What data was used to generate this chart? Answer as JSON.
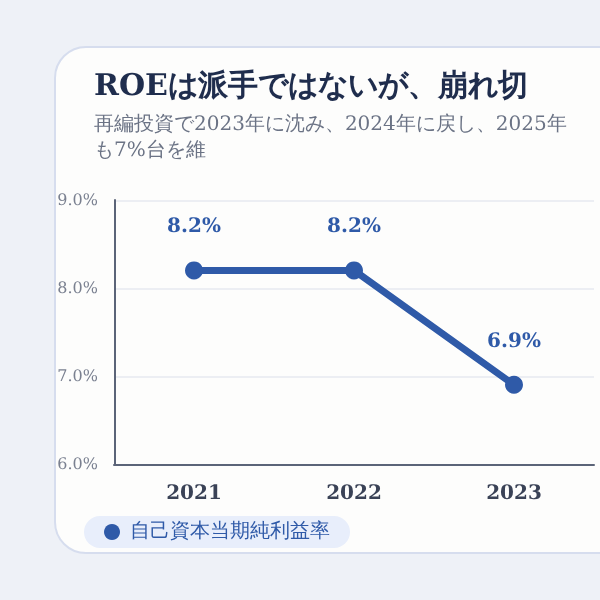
{
  "chart_data": {
    "type": "line",
    "title": "ROEは派手ではないが、崩れ切",
    "subtitle": "再編投資で2023年に沈み、2024年に戻し、2025年も7%台を維",
    "categories": [
      "2021",
      "2022",
      "2023"
    ],
    "series": [
      {
        "name": "自己資本当期純利益率",
        "color": "#2f5aa8",
        "values": [
          8.2,
          8.2,
          6.9
        ],
        "value_labels": [
          "8.2%",
          "8.2%",
          "6.9%"
        ]
      }
    ],
    "ylim": [
      6,
      9
    ],
    "yticks": [
      {
        "value": 6,
        "label": "6.0%"
      },
      {
        "value": 7,
        "label": "7.0%"
      },
      {
        "value": 8,
        "label": "8.0%"
      },
      {
        "value": 9,
        "label": "9.0%"
      }
    ],
    "grid": "y",
    "legend": "bottom left",
    "marker": "circle",
    "line_style": "solid"
  }
}
